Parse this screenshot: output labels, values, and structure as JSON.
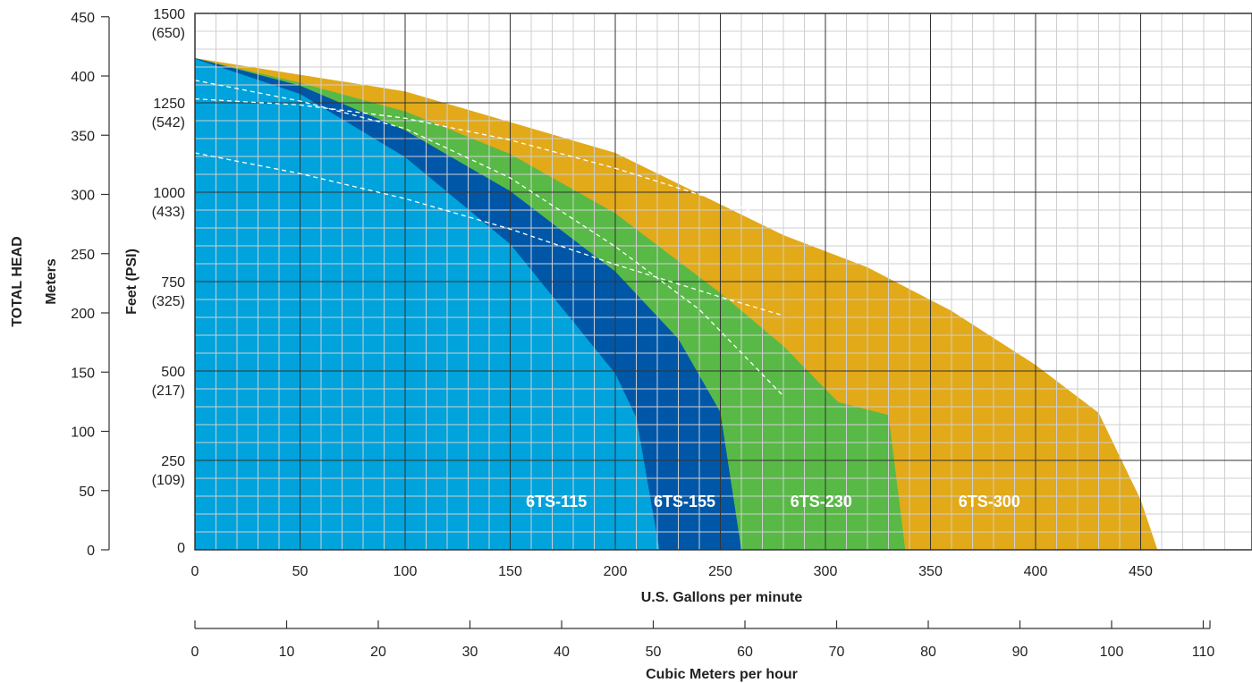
{
  "chart_data": {
    "type": "area",
    "xlabel": "U.S. Gallons per minute",
    "xlabel2": "Cubic Meters per hour",
    "ylabel_outer": "TOTAL HEAD",
    "ylabel_meters": "Meters",
    "ylabel_feet": "Feet (PSI)",
    "xlim": [
      0,
      500
    ],
    "ylim_feet": [
      0,
      1500
    ],
    "x_ticks": [
      "0",
      "50",
      "100",
      "150",
      "200",
      "250",
      "300",
      "350",
      "400",
      "450"
    ],
    "x2_ticks": [
      "0",
      "10",
      "20",
      "30",
      "40",
      "50",
      "60",
      "70",
      "80",
      "90",
      "100",
      "110"
    ],
    "meter_ticks": [
      "450",
      "400",
      "350",
      "300",
      "250",
      "200",
      "150",
      "100",
      "50",
      "0"
    ],
    "feet_ticks": [
      {
        "feet": "1500",
        "psi": "(650)"
      },
      {
        "feet": "1250",
        "psi": "(542)"
      },
      {
        "feet": "1000",
        "psi": "(433)"
      },
      {
        "feet": "750",
        "psi": "(325)"
      },
      {
        "feet": "500",
        "psi": "(217)"
      },
      {
        "feet": "250",
        "psi": "(109)"
      },
      {
        "feet": "0",
        "psi": ""
      }
    ],
    "grid": true,
    "series": [
      {
        "name": "6TS-300",
        "color": "#E2A919",
        "points": [
          [
            0,
            1375
          ],
          [
            100,
            1282
          ],
          [
            200,
            1110
          ],
          [
            280,
            880
          ],
          [
            320,
            790
          ],
          [
            360,
            668
          ],
          [
            400,
            517
          ],
          [
            430,
            383
          ],
          [
            450,
            140
          ],
          [
            458,
            0
          ]
        ]
      },
      {
        "name": "6TS-230",
        "color": "#58B947",
        "points": [
          [
            0,
            1375
          ],
          [
            50,
            1306
          ],
          [
            100,
            1226
          ],
          [
            150,
            1107
          ],
          [
            200,
            941
          ],
          [
            250,
            718
          ],
          [
            280,
            570
          ],
          [
            306,
            413
          ],
          [
            330,
            377
          ],
          [
            338,
            0
          ]
        ]
      },
      {
        "name": "6TS-155",
        "color": "#0057A8",
        "points": [
          [
            0,
            1375
          ],
          [
            50,
            1298
          ],
          [
            100,
            1173
          ],
          [
            150,
            1003
          ],
          [
            200,
            778
          ],
          [
            230,
            590
          ],
          [
            250,
            385
          ],
          [
            260,
            0
          ]
        ]
      },
      {
        "name": "6TS-115",
        "color": "#00A3DB",
        "points": [
          [
            0,
            1373
          ],
          [
            50,
            1275
          ],
          [
            100,
            1098
          ],
          [
            150,
            855
          ],
          [
            200,
            493
          ],
          [
            210,
            370
          ],
          [
            221,
            0
          ]
        ]
      }
    ],
    "dashed_curves": [
      [
        [
          0,
          1313
        ],
        [
          50,
          1255
        ],
        [
          100,
          1178
        ],
        [
          150,
          1040
        ],
        [
          200,
          848
        ],
        [
          240,
          672
        ],
        [
          280,
          430
        ]
      ],
      [
        [
          0,
          1261
        ],
        [
          50,
          1244
        ],
        [
          100,
          1207
        ],
        [
          150,
          1146
        ],
        [
          200,
          1067
        ],
        [
          250,
          975
        ],
        [
          280,
          920
        ]
      ],
      [
        [
          0,
          1110
        ],
        [
          50,
          1052
        ],
        [
          100,
          982
        ],
        [
          150,
          897
        ],
        [
          200,
          798
        ],
        [
          250,
          707
        ],
        [
          280,
          655
        ]
      ]
    ]
  }
}
